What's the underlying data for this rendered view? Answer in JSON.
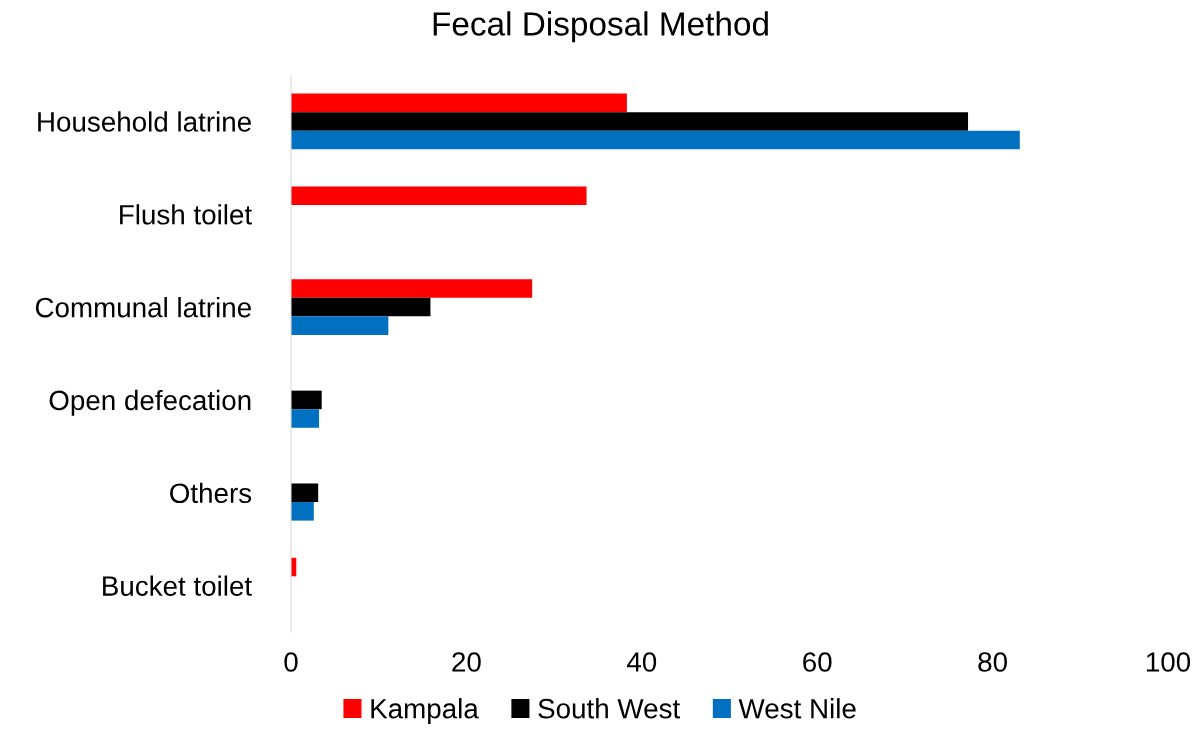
{
  "chart_data": {
    "type": "bar",
    "orientation": "horizontal",
    "title": "Fecal Disposal Method",
    "categories": [
      "Household latrine",
      "Flush toilet",
      "Communal latrine",
      "Open defecation",
      "Others",
      "Bucket toilet"
    ],
    "series": [
      {
        "name": "Kampala",
        "color": "#ff0000",
        "values": [
          38.3,
          33.7,
          27.5,
          null,
          null,
          0.6
        ]
      },
      {
        "name": "South West",
        "color": "#000000",
        "values": [
          77.2,
          null,
          15.9,
          3.5,
          3.1,
          null
        ]
      },
      {
        "name": "West Nile",
        "color": "#0070c0",
        "values": [
          83.1,
          null,
          11.1,
          3.2,
          2.6,
          null
        ]
      }
    ],
    "xlim": [
      0,
      100
    ],
    "xticks": [
      0,
      20,
      40,
      60,
      80,
      100
    ],
    "grid": false,
    "legend": "bottom"
  }
}
